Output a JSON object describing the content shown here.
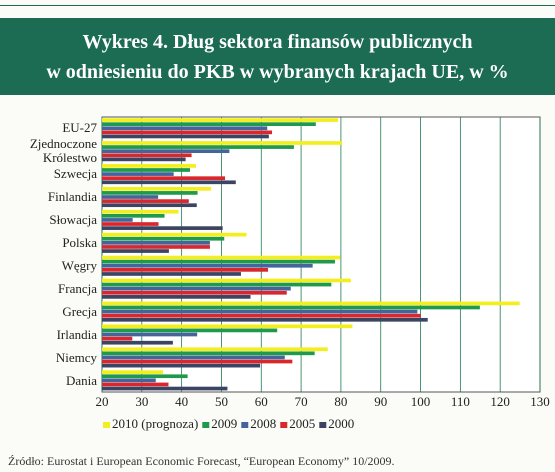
{
  "chart_data": {
    "type": "bar",
    "orientation": "horizontal",
    "title": [
      "Wykres 4. Dług sektora finansów publicznych",
      "w odniesieniu do PKB w wybranych krajach UE, w %"
    ],
    "categories": [
      "EU-27",
      "Zjednoczone Królestwo",
      "Szwecja",
      "Finlandia",
      "Słowacja",
      "Polska",
      "Węgry",
      "Francja",
      "Grecja",
      "Irlandia",
      "Niemcy",
      "Dania"
    ],
    "series": [
      {
        "name": "2010 (prognoza)",
        "color": "#f3ef1e",
        "values": [
          79.3,
          80.3,
          43.6,
          47.4,
          39.2,
          56.3,
          79.8,
          82.5,
          124.9,
          82.9,
          76.7,
          35.3
        ]
      },
      {
        "name": "2009",
        "color": "#1f9a4c",
        "values": [
          73.7,
          68.2,
          42.1,
          44.0,
          35.7,
          50.7,
          78.5,
          77.6,
          114.9,
          64.0,
          73.4,
          41.5
        ]
      },
      {
        "name": "2008",
        "color": "#46649c",
        "values": [
          61.5,
          52.0,
          38.0,
          34.1,
          27.7,
          47.1,
          72.9,
          67.4,
          99.2,
          43.9,
          65.9,
          33.5
        ]
      },
      {
        "name": "2005",
        "color": "#d9282d",
        "values": [
          62.7,
          42.5,
          50.9,
          41.8,
          34.2,
          47.1,
          61.7,
          66.4,
          100.0,
          27.6,
          67.8,
          36.7
        ]
      },
      {
        "name": "2000",
        "color": "#3c4463",
        "values": [
          61.9,
          41.0,
          53.6,
          43.8,
          50.3,
          36.8,
          54.9,
          57.3,
          101.8,
          37.8,
          59.7,
          51.5
        ]
      }
    ],
    "xlim": [
      20,
      130
    ],
    "xticks": [
      20,
      30,
      40,
      50,
      60,
      70,
      80,
      90,
      100,
      110,
      120,
      130
    ],
    "grid": true,
    "legend": "bottom",
    "source": "Źródło: Eurostat i European Economic Forecast, “European Economy” 10/2009."
  }
}
